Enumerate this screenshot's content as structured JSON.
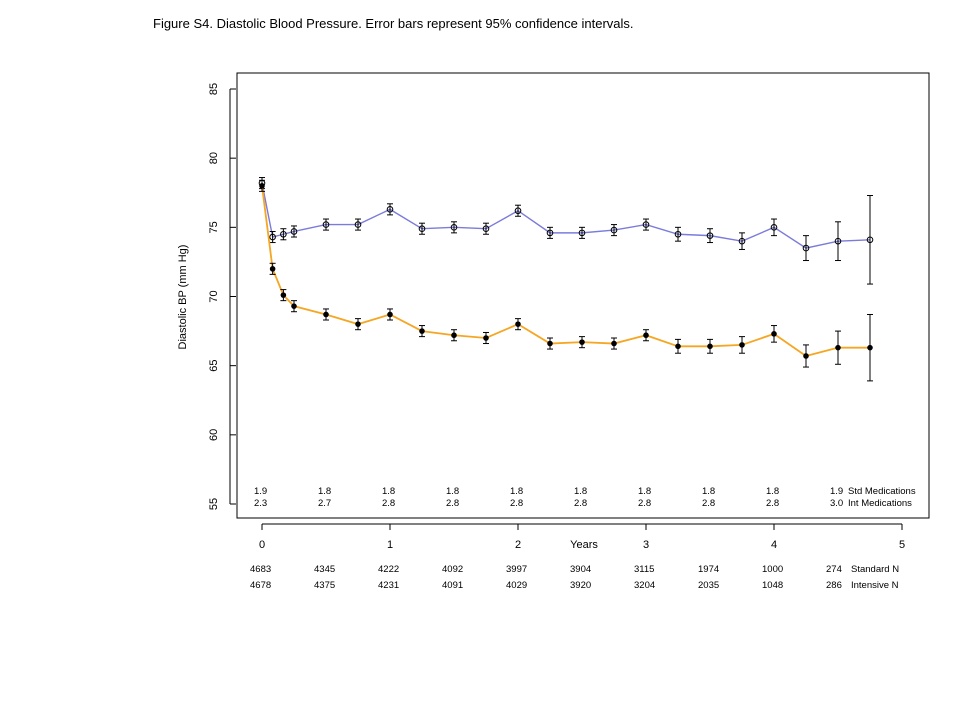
{
  "caption": "Figure S4.  Diastolic Blood Pressure.   Error bars represent 95% confidence intervals.",
  "chart_data": {
    "type": "line",
    "title": "",
    "ylabel": "Diastolic BP (mm Hg)",
    "xlabel": "Years",
    "xlim": [
      -0.2,
      5.2
    ],
    "ylim": [
      54,
      86
    ],
    "yticks": [
      55,
      60,
      65,
      70,
      75,
      80,
      85
    ],
    "xticks": [
      0,
      1,
      2,
      3,
      4,
      5
    ],
    "series": [
      {
        "name": "Standard",
        "color": "#7b7bdc",
        "marker": "open-circle",
        "x": [
          0,
          0.083,
          0.167,
          0.25,
          0.5,
          0.75,
          1.0,
          1.25,
          1.5,
          1.75,
          2.0,
          2.25,
          2.5,
          2.75,
          3.0,
          3.25,
          3.5,
          3.75,
          4.0,
          4.25,
          4.5,
          4.75
        ],
        "values": [
          78.2,
          74.3,
          74.5,
          74.7,
          75.2,
          75.2,
          76.3,
          74.9,
          75.0,
          74.9,
          76.2,
          74.6,
          74.6,
          74.8,
          75.2,
          74.5,
          74.4,
          74.0,
          75.0,
          73.5,
          74.0,
          74.1
        ],
        "ci_low": [
          77.8,
          73.9,
          74.1,
          74.3,
          74.8,
          74.8,
          75.9,
          74.5,
          74.6,
          74.5,
          75.8,
          74.2,
          74.2,
          74.4,
          74.8,
          74.0,
          73.9,
          73.4,
          74.4,
          72.6,
          72.6,
          70.9
        ],
        "ci_high": [
          78.6,
          74.7,
          74.9,
          75.1,
          75.6,
          75.6,
          76.7,
          75.3,
          75.4,
          75.3,
          76.6,
          75.0,
          75.0,
          75.2,
          75.6,
          75.0,
          74.9,
          74.6,
          75.6,
          74.4,
          75.4,
          77.3
        ]
      },
      {
        "name": "Intensive",
        "color": "#f5a623",
        "marker": "filled-circle",
        "x": [
          0,
          0.083,
          0.167,
          0.25,
          0.5,
          0.75,
          1.0,
          1.25,
          1.5,
          1.75,
          2.0,
          2.25,
          2.5,
          2.75,
          3.0,
          3.25,
          3.5,
          3.75,
          4.0,
          4.25,
          4.5,
          4.75
        ],
        "values": [
          78.0,
          72.0,
          70.1,
          69.3,
          68.7,
          68.0,
          68.7,
          67.5,
          67.2,
          67.0,
          68.0,
          66.6,
          66.7,
          66.6,
          67.2,
          66.4,
          66.4,
          66.5,
          67.3,
          65.7,
          66.3,
          66.3
        ],
        "ci_low": [
          77.6,
          71.6,
          69.7,
          68.9,
          68.3,
          67.6,
          68.3,
          67.1,
          66.8,
          66.6,
          67.6,
          66.2,
          66.3,
          66.2,
          66.8,
          65.9,
          65.9,
          65.9,
          66.7,
          64.9,
          65.1,
          63.9
        ],
        "ci_high": [
          78.4,
          72.4,
          70.5,
          69.7,
          69.1,
          68.4,
          69.1,
          67.9,
          67.6,
          67.4,
          68.4,
          67.0,
          67.1,
          67.0,
          67.6,
          66.9,
          66.9,
          67.1,
          67.9,
          66.5,
          67.5,
          68.7
        ]
      }
    ],
    "medications": {
      "x": [
        0,
        0.5,
        1.0,
        1.5,
        2.0,
        2.5,
        3.0,
        3.5,
        4.0,
        4.5
      ],
      "std": [
        "1.9",
        "1.8",
        "1.8",
        "1.8",
        "1.8",
        "1.8",
        "1.8",
        "1.8",
        "1.8",
        "1.9"
      ],
      "int": [
        "2.3",
        "2.7",
        "2.8",
        "2.8",
        "2.8",
        "2.8",
        "2.8",
        "2.8",
        "2.8",
        "3.0"
      ],
      "std_label": "Std Medications",
      "int_label": "Int Medications"
    },
    "risk_table": {
      "x": [
        0,
        0.5,
        1.0,
        1.5,
        2.0,
        2.5,
        3.0,
        3.5,
        4.0,
        4.5
      ],
      "standard": [
        "4683",
        "4345",
        "4222",
        "4092",
        "3997",
        "3904",
        "3115",
        "1974",
        "1000",
        "274"
      ],
      "intensive": [
        "4678",
        "4375",
        "4231",
        "4091",
        "4029",
        "3920",
        "3204",
        "2035",
        "1048",
        "286"
      ],
      "standard_label": "Standard N",
      "intensive_label": "Intensive N"
    }
  }
}
